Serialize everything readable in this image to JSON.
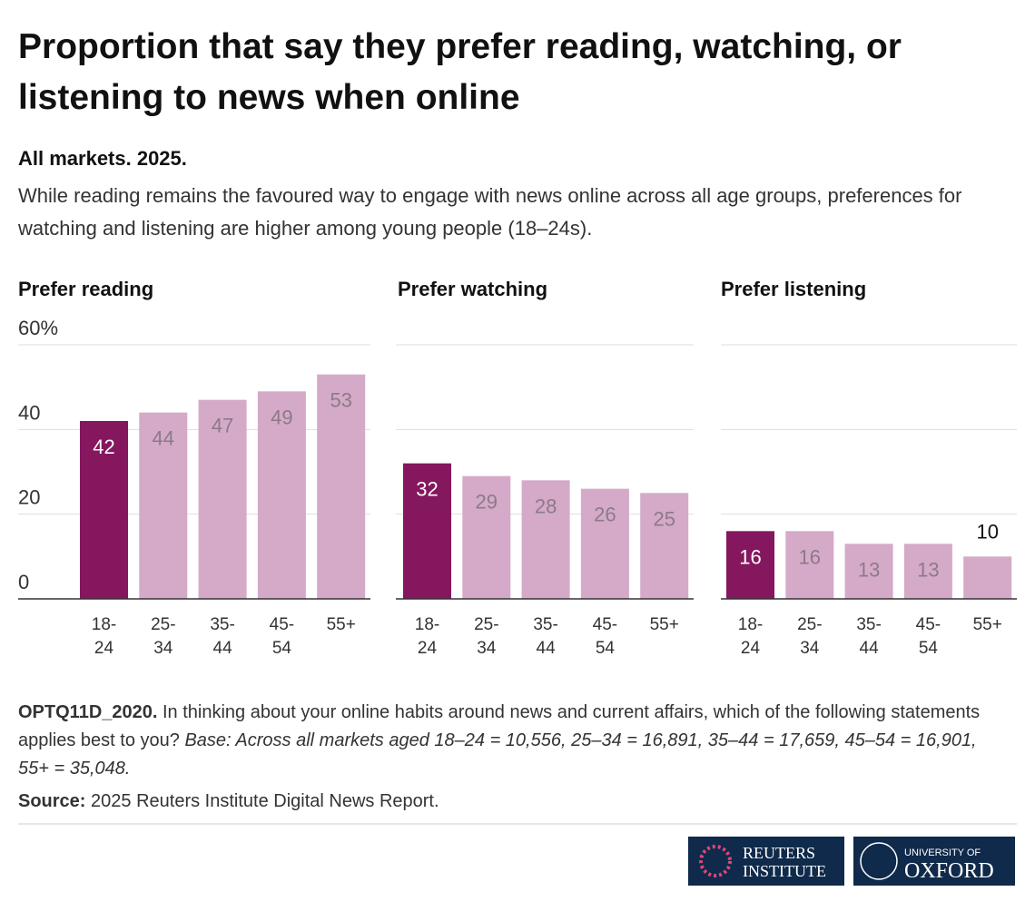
{
  "header": {
    "title": "Proportion that say they prefer reading, watching, or listening to news when online",
    "subtitle_bold": "All markets. 2025.",
    "subtitle": "While reading remains the favoured way to engage with news online across all age groups, preferences for watching and listening are higher among young people (18–24s)."
  },
  "chart_data": [
    {
      "type": "bar",
      "title": "Prefer reading",
      "categories": [
        "18-24",
        "25-34",
        "35-44",
        "45-54",
        "55+"
      ],
      "values": [
        42,
        44,
        47,
        49,
        53
      ],
      "colors": [
        "#84175e",
        "#d4aac8",
        "#d4aac8",
        "#d4aac8",
        "#d4aac8"
      ],
      "ylim": [
        0,
        60
      ],
      "yticks": [
        0,
        20,
        40,
        {
          "value": 60,
          "label": "60%"
        }
      ],
      "grid": true
    },
    {
      "type": "bar",
      "title": "Prefer watching",
      "categories": [
        "18-24",
        "25-34",
        "35-44",
        "45-54",
        "55+"
      ],
      "values": [
        32,
        29,
        28,
        26,
        25
      ],
      "colors": [
        "#84175e",
        "#d4aac8",
        "#d4aac8",
        "#d4aac8",
        "#d4aac8"
      ],
      "ylim": [
        0,
        60
      ],
      "yticks": [
        0,
        20,
        40,
        60
      ],
      "grid": true
    },
    {
      "type": "bar",
      "title": "Prefer listening",
      "categories": [
        "18-24",
        "25-34",
        "35-44",
        "45-54",
        "55+"
      ],
      "values": [
        16,
        16,
        13,
        13,
        10
      ],
      "colors": [
        "#84175e",
        "#d4aac8",
        "#d4aac8",
        "#d4aac8",
        "#d4aac8"
      ],
      "ylim": [
        0,
        60
      ],
      "yticks": [
        0,
        20,
        40,
        60
      ],
      "grid": true
    }
  ],
  "footer": {
    "note_code": "OPTQ11D_2020.",
    "note": "In thinking about your online habits around news and current affairs, which of the following statements applies best to you?",
    "base": "Base: Across all markets aged 18–24 = 10,556, 25–34 = 16,891, 35–44 = 17,659, 45–54 = 16,901, 55+ = 35,048.",
    "source_label": "Source:",
    "source": "2025 Reuters Institute Digital News Report."
  },
  "logos": {
    "reuters_1": "REUTERS",
    "reuters_2": "INSTITUTE",
    "oxford_1": "UNIVERSITY OF",
    "oxford_2": "OXFORD"
  }
}
